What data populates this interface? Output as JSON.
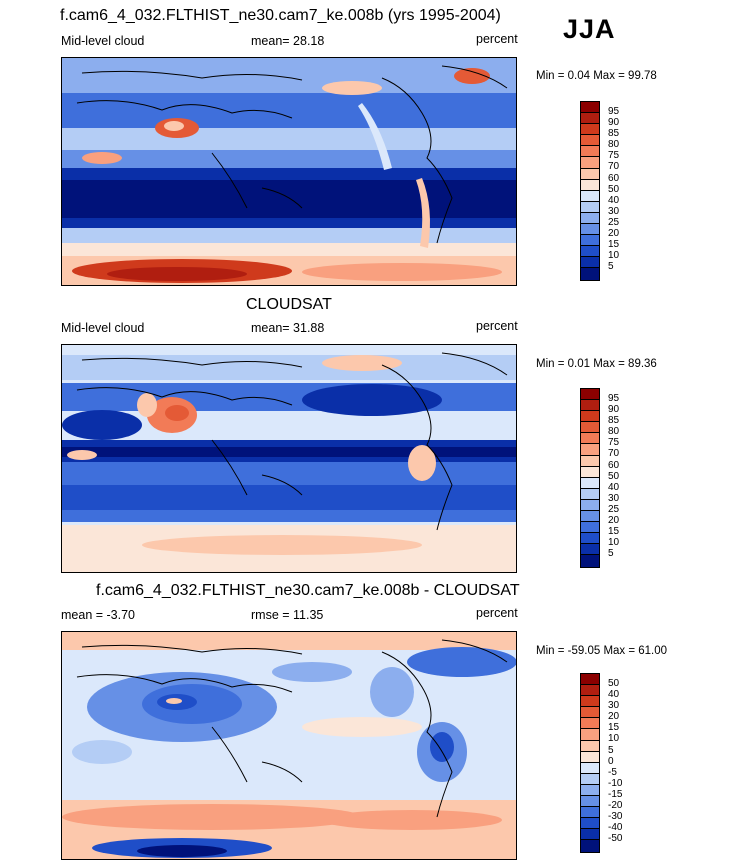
{
  "season": "JJA",
  "panels": [
    {
      "title": "f.cam6_4_032.FLTHIST_ne30.cam7_ke.008b (yrs 1995-2004)",
      "left_label": "Mid-level cloud",
      "center_label": "mean=  28.18",
      "right_label": "percent",
      "minmax": "Min =   0.04 Max =  99.78",
      "colorbar_labels": [
        "95",
        "90",
        "85",
        "80",
        "75",
        "70",
        "60",
        "50",
        "40",
        "30",
        "25",
        "20",
        "15",
        "10",
        "5"
      ]
    },
    {
      "title": "CLOUDSAT",
      "left_label": "Mid-level cloud",
      "center_label": "mean=  31.88",
      "right_label": "percent",
      "minmax": "Min =   0.01 Max =  89.36",
      "colorbar_labels": [
        "95",
        "90",
        "85",
        "80",
        "75",
        "70",
        "60",
        "50",
        "40",
        "30",
        "25",
        "20",
        "15",
        "10",
        "5"
      ]
    },
    {
      "title": "f.cam6_4_032.FLTHIST_ne30.cam7_ke.008b - CLOUDSAT",
      "left_label": "mean =  -3.70",
      "center_label": "rmse =  11.35",
      "right_label": "percent",
      "minmax": "Min = -59.05 Max =  61.00",
      "colorbar_labels": [
        "50",
        "40",
        "30",
        "20",
        "15",
        "10",
        "5",
        "0",
        "-5",
        "-10",
        "-15",
        "-20",
        "-30",
        "-40",
        "-50"
      ]
    }
  ],
  "colors": {
    "scale": [
      "#8b0000",
      "#b01e10",
      "#cf3a1c",
      "#e45a36",
      "#f27b57",
      "#f9a07f",
      "#fcc8ac",
      "#fbe6d8",
      "#dbe8fb",
      "#b4cdf5",
      "#8caeee",
      "#6690e6",
      "#3f6fdb",
      "#1f4ec8",
      "#0a2fa8",
      "#00127a"
    ]
  }
}
